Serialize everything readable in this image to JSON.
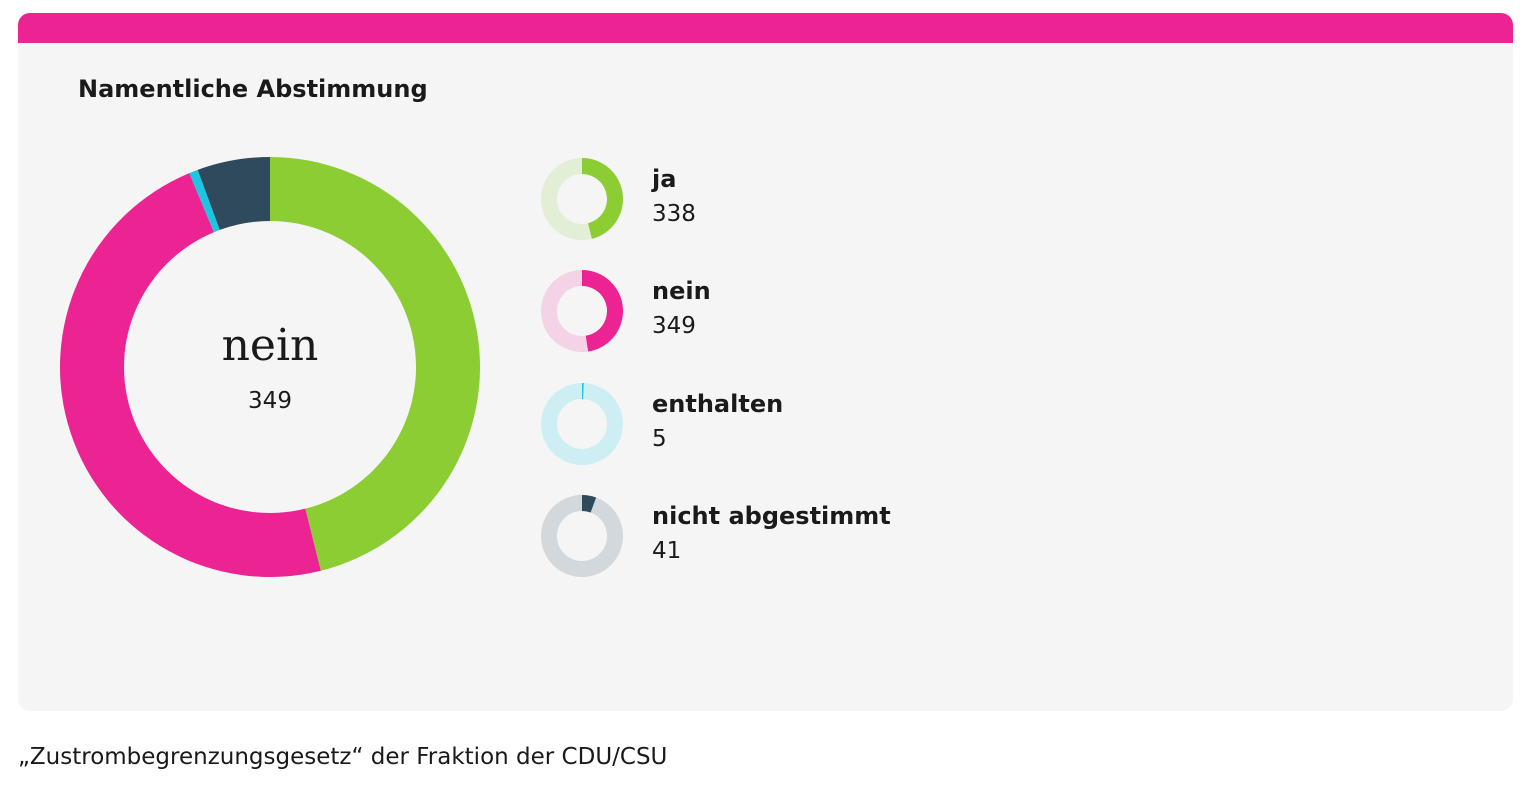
{
  "card": {
    "title": "Namentliche Abstimmung",
    "accent_color": "#ec2393"
  },
  "center": {
    "label": "nein",
    "value": "349"
  },
  "caption": "„Zustrombegrenzungsgesetz“ der Fraktion der CDU/CSU",
  "chart_data": {
    "type": "pie",
    "title": "Namentliche Abstimmung",
    "categories": [
      "ja",
      "nein",
      "enthalten",
      "nicht abgestimmt"
    ],
    "values": [
      338,
      349,
      5,
      41
    ],
    "colors": [
      "#8ccd34",
      "#ec2393",
      "#1cc6e0",
      "#2e4a5c"
    ],
    "light_colors": [
      "#e2eed6",
      "#f5d3e6",
      "#cdeef2",
      "#d2d8dc"
    ],
    "donut": true,
    "legend_position": "right"
  },
  "legend": [
    {
      "label": "ja",
      "value": "338",
      "icon": "ja-donut-icon"
    },
    {
      "label": "nein",
      "value": "349",
      "icon": "nein-donut-icon"
    },
    {
      "label": "enthalten",
      "value": "5",
      "icon": "enthalten-donut-icon"
    },
    {
      "label": "nicht abgestimmt",
      "value": "41",
      "icon": "nicht-abgestimmt-donut-icon"
    }
  ]
}
